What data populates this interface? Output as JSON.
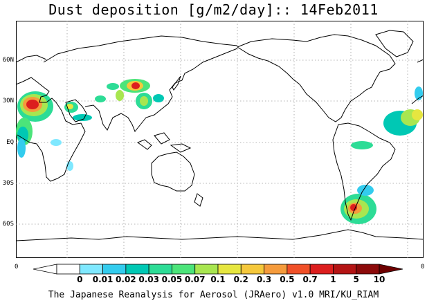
{
  "title": "Dust deposition [g/m2/day]:: 14Feb2011",
  "latitude_labels": [
    "60N",
    "30N",
    "EQ",
    "30S",
    "60S"
  ],
  "corner_left": "0",
  "corner_right": "0",
  "colorbar": {
    "ticks": [
      "0",
      "0.01",
      "0.02",
      "0.03",
      "0.05",
      "0.07",
      "0.1",
      "0.2",
      "0.3",
      "0.5",
      "0.7",
      "1",
      "5",
      "10"
    ],
    "colors": [
      "#ffffff",
      "#ffffff",
      "#7fe8ff",
      "#33ccee",
      "#00c8b4",
      "#2ddc96",
      "#4ce47a",
      "#a8e650",
      "#e6e640",
      "#f5c83c",
      "#f59b3c",
      "#f05028",
      "#dc1e1e",
      "#b41414",
      "#8c0a0a",
      "#6e0000"
    ]
  },
  "footer": "The Japanese Reanalysis for Aerosol (JRAero) v1.0 MRI/KU_RIAM"
}
